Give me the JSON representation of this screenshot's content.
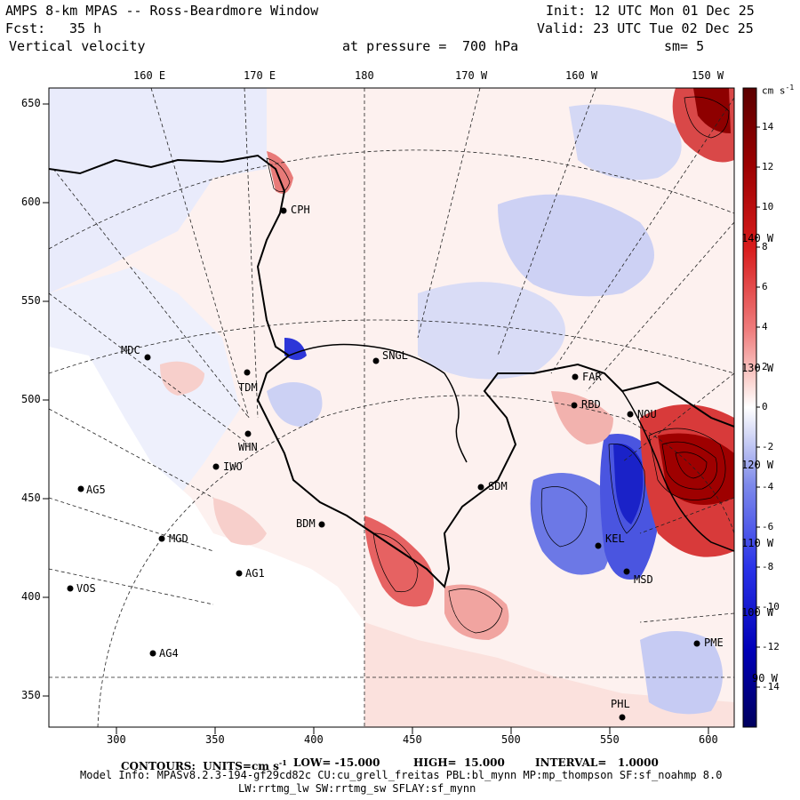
{
  "header": {
    "title": "AMPS 8-km MPAS -- Ross-Beardmore Window",
    "fcst_label": "Fcst:",
    "fcst_value": "35 h",
    "variable": "Vertical velocity",
    "init": "Init: 12 UTC Mon 01 Dec 25",
    "valid": "Valid: 23 UTC Tue 02 Dec 25",
    "pressure_prefix": "at pressure =",
    "pressure_value": "700 hPa",
    "smooth": "sm= 5"
  },
  "axes": {
    "top_lon_labels": [
      "160 E",
      "170 E",
      "180",
      "170 W",
      "160 W",
      "150 W"
    ],
    "left_y_labels": [
      "650",
      "600",
      "550",
      "500",
      "450",
      "400",
      "350"
    ],
    "bottom_x_labels": [
      "300",
      "350",
      "400",
      "450",
      "500",
      "550",
      "600"
    ],
    "right_lon_labels": [
      "140 W",
      "130 W",
      "120 W",
      "110 W",
      "100 W",
      "90 W"
    ]
  },
  "colorbar": {
    "units": "cm s",
    "units_exp": "-1",
    "ticks": [
      "14",
      "12",
      "10",
      "8",
      "6",
      "4",
      "2",
      "0",
      "-2",
      "-4",
      "-6",
      "-8",
      "-10",
      "-12",
      "-14"
    ]
  },
  "stations": [
    {
      "name": "CPH"
    },
    {
      "name": "MDC"
    },
    {
      "name": "SNGL"
    },
    {
      "name": "TDM"
    },
    {
      "name": "WHN"
    },
    {
      "name": "IWO"
    },
    {
      "name": "AG5"
    },
    {
      "name": "MGD"
    },
    {
      "name": "AG1"
    },
    {
      "name": "VOS"
    },
    {
      "name": "AG4"
    },
    {
      "name": "SDM"
    },
    {
      "name": "FAR"
    },
    {
      "name": "RBD"
    },
    {
      "name": "NOU"
    },
    {
      "name": "BDM"
    },
    {
      "name": "MSD"
    },
    {
      "name": "PHL"
    },
    {
      "name": "PME"
    },
    {
      "name": "KEL"
    }
  ],
  "footer": {
    "contours": "CONTOURS:  UNITS=cm s",
    "contours_exp": "-1",
    "low": "LOW= -15.000",
    "high": "HIGH=  15.000",
    "interval": "INTERVAL=   1.0000",
    "model_line1": "Model Info: MPASv8.2.3-194-gf29cd82c CU:cu_grell_freitas PBL:bl_mynn MP:mp_thompson SF:sf_noahmp 8.0",
    "model_line2": "LW:rrtmg_lw SW:rrtmg_sw SFLAY:sf_mynn"
  },
  "colors": {
    "positive_strong": "#8b0000",
    "positive_mid": "#e04040",
    "positive_light": "#fde0dc",
    "negative_light": "#e6e8fb",
    "negative_mid": "#5a6ae0",
    "negative_strong": "#00008b"
  }
}
